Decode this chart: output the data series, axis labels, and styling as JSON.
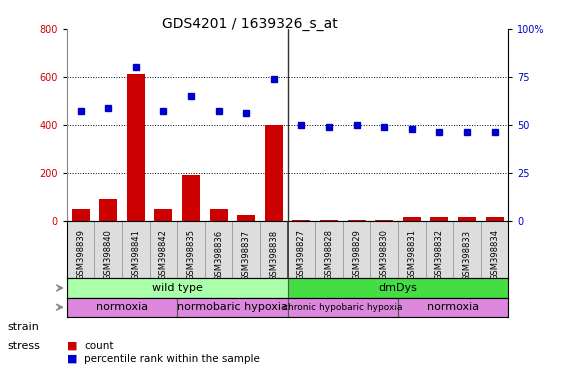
{
  "title": "GDS4201 / 1639326_s_at",
  "samples": [
    "GSM398839",
    "GSM398840",
    "GSM398841",
    "GSM398842",
    "GSM398835",
    "GSM398836",
    "GSM398837",
    "GSM398838",
    "GSM398827",
    "GSM398828",
    "GSM398829",
    "GSM398830",
    "GSM398831",
    "GSM398832",
    "GSM398833",
    "GSM398834"
  ],
  "count": [
    50,
    90,
    610,
    50,
    190,
    50,
    25,
    400,
    5,
    5,
    5,
    5,
    15,
    15,
    15,
    15
  ],
  "percentile": [
    57,
    59,
    80,
    57,
    65,
    57,
    56,
    74,
    50,
    49,
    50,
    49,
    48,
    46,
    46,
    46
  ],
  "count_color": "#cc0000",
  "percentile_color": "#0000cc",
  "ylim_left": [
    0,
    800
  ],
  "ylim_right": [
    0,
    100
  ],
  "yticks_left": [
    0,
    200,
    400,
    600,
    800
  ],
  "yticks_right": [
    0,
    25,
    50,
    75,
    100
  ],
  "ytick_labels_right": [
    "0",
    "25",
    "50",
    "75",
    "100%"
  ],
  "strain_groups": [
    {
      "label": "wild type",
      "start": 0,
      "end": 8,
      "color": "#aaffaa"
    },
    {
      "label": "dmDys",
      "start": 8,
      "end": 16,
      "color": "#44dd44"
    }
  ],
  "stress_groups": [
    {
      "label": "normoxia",
      "start": 0,
      "end": 4,
      "color": "#dd88dd"
    },
    {
      "label": "normobaric hypoxia",
      "start": 4,
      "end": 8,
      "color": "#dd88dd"
    },
    {
      "label": "chronic hypobaric hypoxia",
      "start": 8,
      "end": 12,
      "color": "#dd88dd"
    },
    {
      "label": "normoxia",
      "start": 12,
      "end": 16,
      "color": "#dd88dd"
    }
  ],
  "background_color": "#ffffff",
  "plot_bg_color": "#ffffff",
  "grid_color": "#000000",
  "title_fontsize": 10,
  "tick_fontsize": 7,
  "label_fontsize": 8
}
